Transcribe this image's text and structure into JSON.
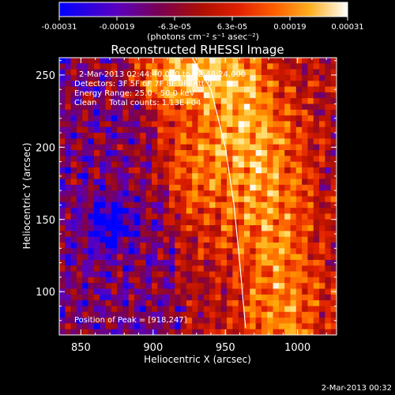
{
  "colorbar": {
    "tick_labels": [
      "-0.00031",
      "-0.00019",
      "-6.3e-05",
      "6.3e-05",
      "0.00019",
      "0.00031"
    ],
    "unit_label": "(photons cm⁻² s⁻¹ asec⁻²)",
    "range": [
      -0.00031,
      0.00031
    ]
  },
  "chart_data": {
    "type": "heatmap",
    "title": "Reconstructed RHESSI Image",
    "xlabel": "Heliocentric X (arcsec)",
    "ylabel": "Heliocentric Y (arcsec)",
    "xlim": [
      835,
      1027
    ],
    "ylim": [
      70,
      262
    ],
    "x_ticks": [
      850,
      900,
      950,
      1000
    ],
    "y_ticks": [
      100,
      150,
      200,
      250
    ],
    "colormap": [
      "#0000ff",
      "#5a00c0",
      "#7a0050",
      "#b01000",
      "#e02000",
      "#ff6000",
      "#ffa000",
      "#ffd860",
      "#ffffff"
    ],
    "annotations": [
      "2-Mar-2013 02:44:40.000 to 02:48:24.000",
      "Detectors: 3F 5F 6F 7F 8F 9F, Att 0",
      "Energy Range: 25.0 - 50.0 keV",
      "Clean     Total counts: 1.13E+04"
    ],
    "peak_label": "Position of Peak = [918,247]",
    "peak": [
      918,
      247
    ],
    "limb_curve": [
      [
        927,
        262
      ],
      [
        940,
        240
      ],
      [
        950,
        200
      ],
      [
        956,
        160
      ],
      [
        960,
        120
      ],
      [
        964,
        75
      ]
    ],
    "grid": false
  },
  "footer": {
    "timestamp": "2-Mar-2013 00:32"
  }
}
